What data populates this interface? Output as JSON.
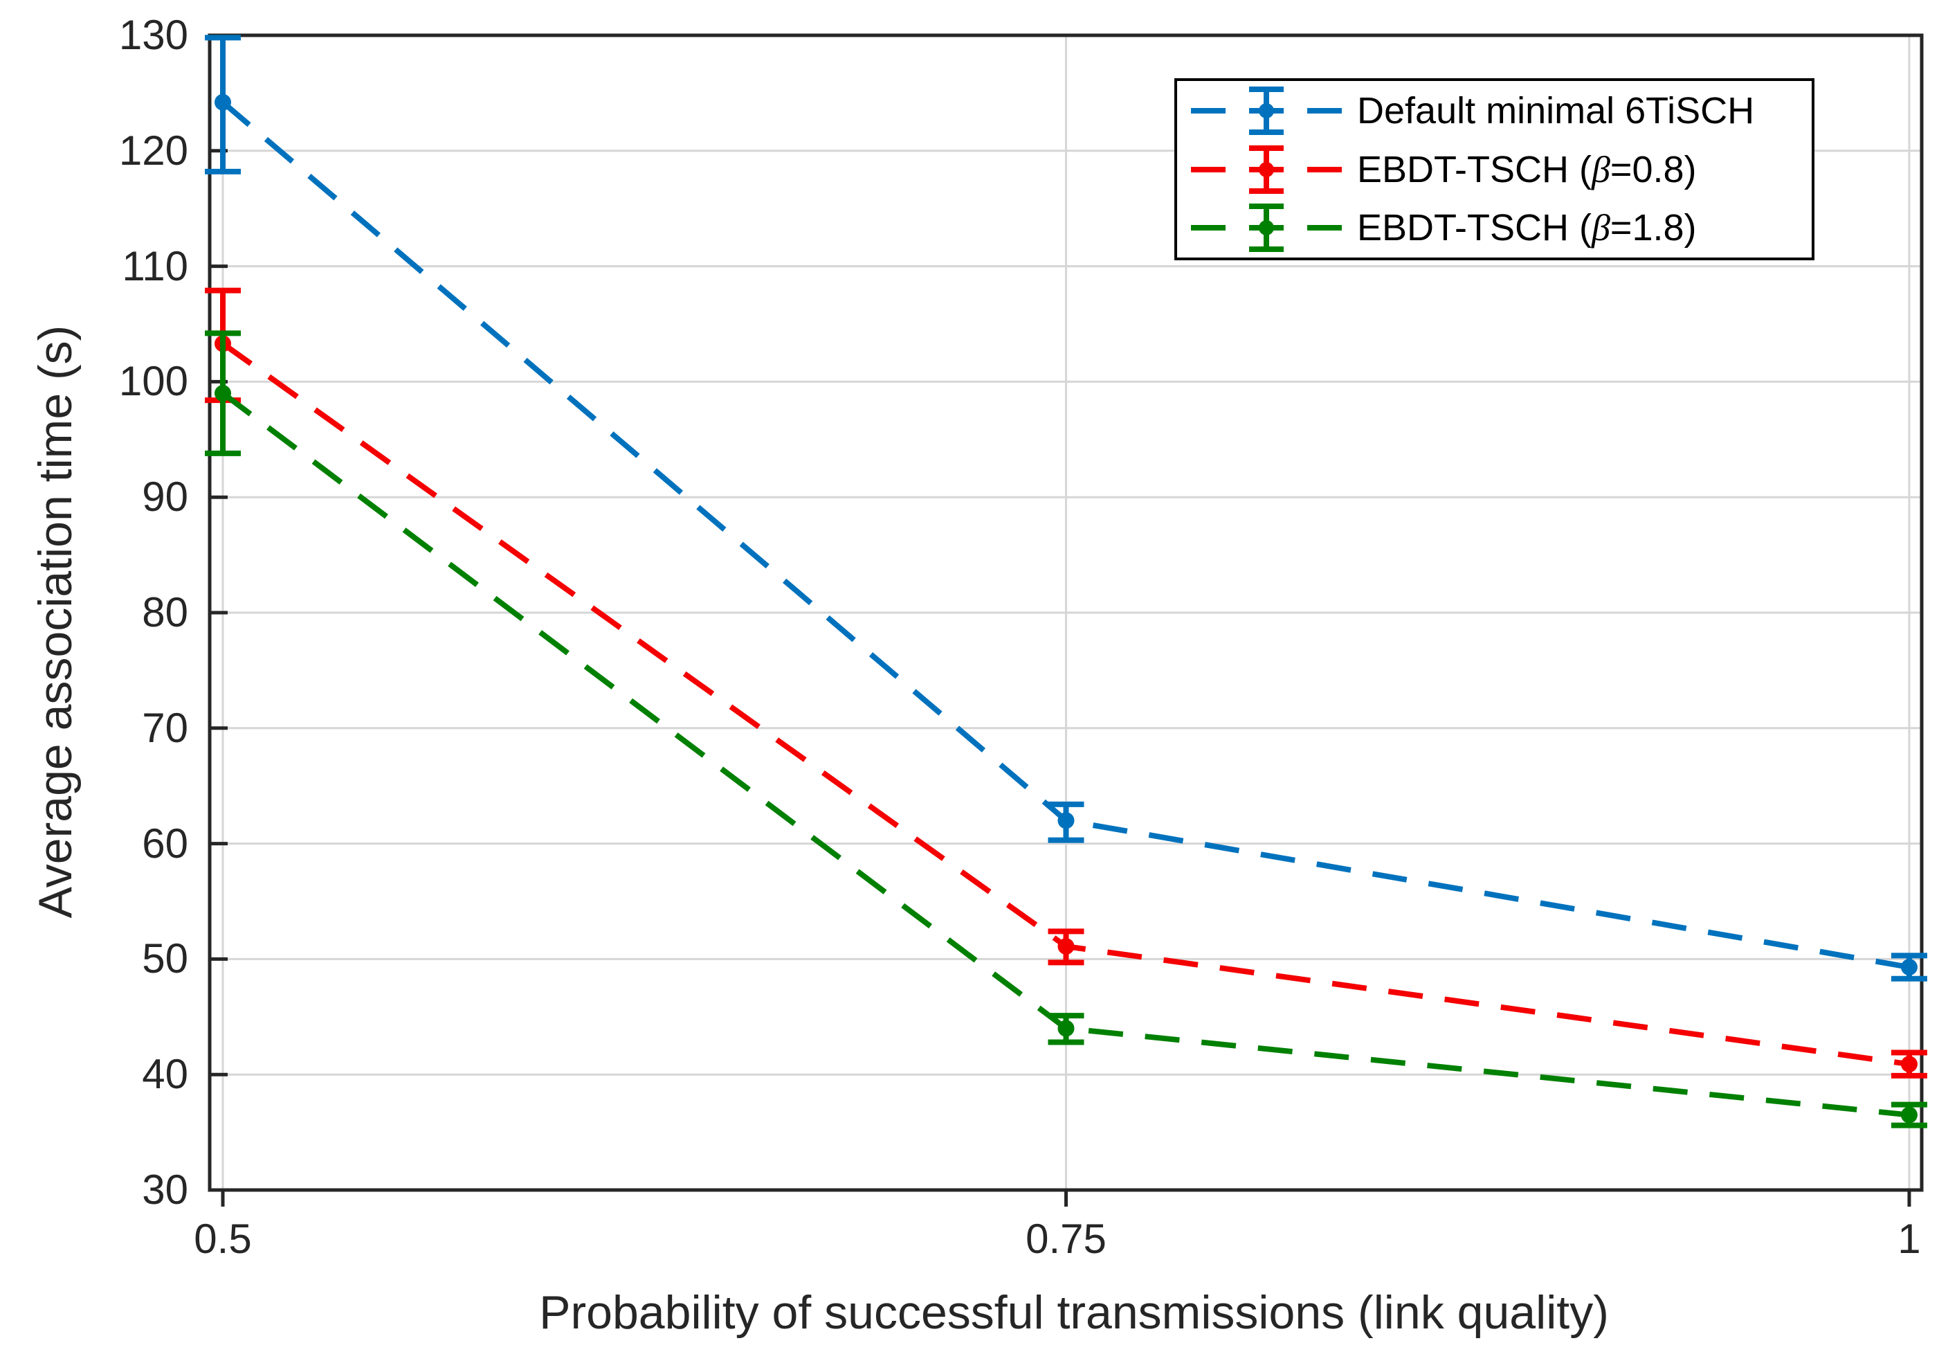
{
  "chart_data": {
    "type": "line",
    "title": "",
    "xlabel": "Probability of successful transmissions (link quality)",
    "ylabel": "Average association time (s)",
    "x": [
      0.5,
      0.75,
      1
    ],
    "xtick_labels": [
      "0.5",
      "0.75",
      "1"
    ],
    "yticks": [
      30,
      40,
      50,
      60,
      70,
      80,
      90,
      100,
      110,
      120,
      130
    ],
    "xlim": [
      0.4961,
      1.0037
    ],
    "ylim": [
      30,
      130
    ],
    "grid": true,
    "legend_position": "top-right",
    "line_style": "dashed",
    "marker": "dot",
    "colors": {
      "grid": "#d6d6d6",
      "frame": "#262626",
      "tick": "#262626",
      "text": "#262626"
    },
    "series": [
      {
        "name": "Default minimal 6TiSCH",
        "color": "#0072BD",
        "values": [
          124.2,
          62.0,
          49.3
        ],
        "err_lower": [
          118.2,
          60.3,
          48.3
        ],
        "err_upper": [
          129.8,
          63.4,
          50.3
        ]
      },
      {
        "name": "EBDT-TSCH (β=0.8)",
        "color": "#F40000",
        "values": [
          103.3,
          51.1,
          40.9
        ],
        "err_lower": [
          98.4,
          49.7,
          39.9
        ],
        "err_upper": [
          107.9,
          52.4,
          41.9
        ]
      },
      {
        "name": "EBDT-TSCH (β=1.8)",
        "color": "#008000",
        "values": [
          99.0,
          44.0,
          36.5
        ],
        "err_lower": [
          93.8,
          42.8,
          35.6
        ],
        "err_upper": [
          104.2,
          45.1,
          37.4
        ]
      }
    ]
  },
  "legend": {
    "items": [
      {
        "pre": "Default minimal 6TiSCH",
        "beta": "",
        "post": ""
      },
      {
        "pre": "EBDT-TSCH (",
        "beta": "β",
        "post": "=0.8)"
      },
      {
        "pre": "EBDT-TSCH (",
        "beta": "β",
        "post": "=1.8)"
      }
    ]
  }
}
